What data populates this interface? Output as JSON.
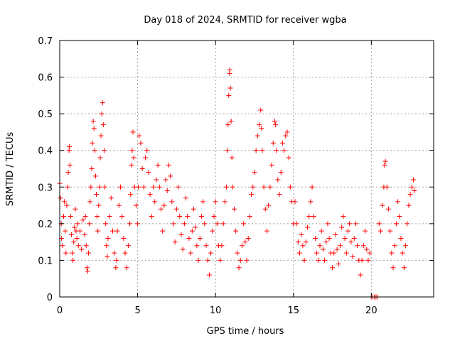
{
  "chart_data": {
    "type": "scatter",
    "title": "Day 018 of 2024, SRMTID for receiver wgba",
    "xlabel": "GPS time / hours",
    "ylabel": "SRMTID / TECUs",
    "xlim": [
      0,
      24
    ],
    "ylim": [
      0,
      0.7
    ],
    "xticks": [
      0,
      5,
      10,
      15,
      20
    ],
    "yticks": [
      0,
      0.1,
      0.2,
      0.3,
      0.4,
      0.5,
      0.6,
      0.7
    ],
    "ytick_labels": [
      "0",
      "0.1",
      "0.2",
      "0.3",
      "0.4",
      "0.5",
      "0.6",
      "0.7"
    ],
    "grid": true,
    "marker": "+",
    "colors": {
      "series": "#ff0000",
      "grid": "#a0a0a0",
      "axis": "#000000"
    },
    "series": [
      {
        "name": "SRMTID",
        "points": [
          [
            0.0,
            0.31
          ],
          [
            0.05,
            0.27
          ],
          [
            0.1,
            0.2
          ],
          [
            0.12,
            0.16
          ],
          [
            0.18,
            0.14
          ],
          [
            0.25,
            0.22
          ],
          [
            0.3,
            0.26
          ],
          [
            0.35,
            0.18
          ],
          [
            0.4,
            0.12
          ],
          [
            0.45,
            0.25
          ],
          [
            0.5,
            0.3
          ],
          [
            0.55,
            0.34
          ],
          [
            0.6,
            0.4
          ],
          [
            0.62,
            0.41
          ],
          [
            0.65,
            0.36
          ],
          [
            0.7,
            0.22
          ],
          [
            0.75,
            0.17
          ],
          [
            0.8,
            0.12
          ],
          [
            0.85,
            0.1
          ],
          [
            0.9,
            0.15
          ],
          [
            0.95,
            0.19
          ],
          [
            1.0,
            0.24
          ],
          [
            1.05,
            0.18
          ],
          [
            1.1,
            0.16
          ],
          [
            1.15,
            0.2
          ],
          [
            1.2,
            0.14
          ],
          [
            1.3,
            0.18
          ],
          [
            1.4,
            0.13
          ],
          [
            1.5,
            0.21
          ],
          [
            1.6,
            0.17
          ],
          [
            1.65,
            0.22
          ],
          [
            1.7,
            0.14
          ],
          [
            1.75,
            0.08
          ],
          [
            1.8,
            0.07
          ],
          [
            1.85,
            0.12
          ],
          [
            1.9,
            0.2
          ],
          [
            1.95,
            0.26
          ],
          [
            2.0,
            0.3
          ],
          [
            2.05,
            0.35
          ],
          [
            2.1,
            0.42
          ],
          [
            2.15,
            0.48
          ],
          [
            2.2,
            0.46
          ],
          [
            2.25,
            0.4
          ],
          [
            2.3,
            0.33
          ],
          [
            2.35,
            0.28
          ],
          [
            2.4,
            0.22
          ],
          [
            2.45,
            0.18
          ],
          [
            2.5,
            0.25
          ],
          [
            2.55,
            0.3
          ],
          [
            2.6,
            0.38
          ],
          [
            2.65,
            0.44
          ],
          [
            2.7,
            0.5
          ],
          [
            2.75,
            0.53
          ],
          [
            2.8,
            0.47
          ],
          [
            2.85,
            0.4
          ],
          [
            2.9,
            0.3
          ],
          [
            2.95,
            0.2
          ],
          [
            3.0,
            0.14
          ],
          [
            3.05,
            0.11
          ],
          [
            3.1,
            0.16
          ],
          [
            3.2,
            0.22
          ],
          [
            3.3,
            0.27
          ],
          [
            3.4,
            0.18
          ],
          [
            3.5,
            0.12
          ],
          [
            3.6,
            0.08
          ],
          [
            3.65,
            0.1
          ],
          [
            3.7,
            0.18
          ],
          [
            3.8,
            0.25
          ],
          [
            3.9,
            0.3
          ],
          [
            4.0,
            0.22
          ],
          [
            4.1,
            0.16
          ],
          [
            4.2,
            0.12
          ],
          [
            4.3,
            0.08
          ],
          [
            4.4,
            0.14
          ],
          [
            4.5,
            0.2
          ],
          [
            4.55,
            0.28
          ],
          [
            4.6,
            0.36
          ],
          [
            4.65,
            0.4
          ],
          [
            4.7,
            0.45
          ],
          [
            4.75,
            0.38
          ],
          [
            4.8,
            0.3
          ],
          [
            4.9,
            0.25
          ],
          [
            5.0,
            0.2
          ],
          [
            5.05,
            0.3
          ],
          [
            5.1,
            0.44
          ],
          [
            5.2,
            0.42
          ],
          [
            5.3,
            0.35
          ],
          [
            5.4,
            0.3
          ],
          [
            5.5,
            0.38
          ],
          [
            5.6,
            0.4
          ],
          [
            5.7,
            0.34
          ],
          [
            5.8,
            0.28
          ],
          [
            5.9,
            0.22
          ],
          [
            6.0,
            0.3
          ],
          [
            6.1,
            0.26
          ],
          [
            6.2,
            0.32
          ],
          [
            6.3,
            0.36
          ],
          [
            6.4,
            0.3
          ],
          [
            6.5,
            0.24
          ],
          [
            6.6,
            0.18
          ],
          [
            6.7,
            0.25
          ],
          [
            6.8,
            0.32
          ],
          [
            6.9,
            0.29
          ],
          [
            7.0,
            0.36
          ],
          [
            7.1,
            0.33
          ],
          [
            7.2,
            0.26
          ],
          [
            7.3,
            0.2
          ],
          [
            7.4,
            0.15
          ],
          [
            7.5,
            0.24
          ],
          [
            7.6,
            0.3
          ],
          [
            7.7,
            0.22
          ],
          [
            7.8,
            0.17
          ],
          [
            7.9,
            0.13
          ],
          [
            8.0,
            0.2
          ],
          [
            8.1,
            0.27
          ],
          [
            8.2,
            0.22
          ],
          [
            8.3,
            0.16
          ],
          [
            8.4,
            0.12
          ],
          [
            8.5,
            0.18
          ],
          [
            8.6,
            0.24
          ],
          [
            8.7,
            0.19
          ],
          [
            8.8,
            0.14
          ],
          [
            8.9,
            0.1
          ],
          [
            9.0,
            0.16
          ],
          [
            9.1,
            0.22
          ],
          [
            9.2,
            0.26
          ],
          [
            9.3,
            0.2
          ],
          [
            9.4,
            0.14
          ],
          [
            9.5,
            0.1
          ],
          [
            9.6,
            0.06
          ],
          [
            9.7,
            0.12
          ],
          [
            9.8,
            0.18
          ],
          [
            9.9,
            0.22
          ],
          [
            10.0,
            0.26
          ],
          [
            10.1,
            0.2
          ],
          [
            10.2,
            0.14
          ],
          [
            10.3,
            0.1
          ],
          [
            10.4,
            0.14
          ],
          [
            10.5,
            0.2
          ],
          [
            10.6,
            0.26
          ],
          [
            10.7,
            0.3
          ],
          [
            10.75,
            0.4
          ],
          [
            10.8,
            0.47
          ],
          [
            10.85,
            0.55
          ],
          [
            10.9,
            0.61
          ],
          [
            10.92,
            0.62
          ],
          [
            10.95,
            0.57
          ],
          [
            11.0,
            0.48
          ],
          [
            11.05,
            0.38
          ],
          [
            11.1,
            0.3
          ],
          [
            11.2,
            0.24
          ],
          [
            11.3,
            0.18
          ],
          [
            11.4,
            0.12
          ],
          [
            11.5,
            0.08
          ],
          [
            11.6,
            0.1
          ],
          [
            11.7,
            0.14
          ],
          [
            11.8,
            0.2
          ],
          [
            11.9,
            0.15
          ],
          [
            12.0,
            0.1
          ],
          [
            12.1,
            0.16
          ],
          [
            12.2,
            0.22
          ],
          [
            12.3,
            0.28
          ],
          [
            12.4,
            0.3
          ],
          [
            12.5,
            0.34
          ],
          [
            12.6,
            0.4
          ],
          [
            12.7,
            0.44
          ],
          [
            12.8,
            0.47
          ],
          [
            12.9,
            0.51
          ],
          [
            12.95,
            0.46
          ],
          [
            13.0,
            0.4
          ],
          [
            13.1,
            0.3
          ],
          [
            13.2,
            0.24
          ],
          [
            13.3,
            0.18
          ],
          [
            13.4,
            0.25
          ],
          [
            13.5,
            0.3
          ],
          [
            13.6,
            0.36
          ],
          [
            13.7,
            0.42
          ],
          [
            13.8,
            0.48
          ],
          [
            13.85,
            0.47
          ],
          [
            13.9,
            0.4
          ],
          [
            14.0,
            0.32
          ],
          [
            14.1,
            0.28
          ],
          [
            14.2,
            0.34
          ],
          [
            14.3,
            0.42
          ],
          [
            14.4,
            0.4
          ],
          [
            14.5,
            0.44
          ],
          [
            14.6,
            0.45
          ],
          [
            14.7,
            0.38
          ],
          [
            14.8,
            0.3
          ],
          [
            14.9,
            0.26
          ],
          [
            15.0,
            0.2
          ],
          [
            15.1,
            0.26
          ],
          [
            15.2,
            0.2
          ],
          [
            15.3,
            0.15
          ],
          [
            15.4,
            0.12
          ],
          [
            15.5,
            0.17
          ],
          [
            15.6,
            0.14
          ],
          [
            15.7,
            0.1
          ],
          [
            15.8,
            0.15
          ],
          [
            15.9,
            0.19
          ],
          [
            16.0,
            0.22
          ],
          [
            16.1,
            0.26
          ],
          [
            16.2,
            0.3
          ],
          [
            16.3,
            0.22
          ],
          [
            16.4,
            0.16
          ],
          [
            16.5,
            0.12
          ],
          [
            16.6,
            0.1
          ],
          [
            16.7,
            0.14
          ],
          [
            16.8,
            0.18
          ],
          [
            16.9,
            0.13
          ],
          [
            17.0,
            0.1
          ],
          [
            17.1,
            0.15
          ],
          [
            17.2,
            0.2
          ],
          [
            17.3,
            0.16
          ],
          [
            17.4,
            0.12
          ],
          [
            17.5,
            0.08
          ],
          [
            17.6,
            0.12
          ],
          [
            17.7,
            0.17
          ],
          [
            17.8,
            0.13
          ],
          [
            17.9,
            0.09
          ],
          [
            18.0,
            0.14
          ],
          [
            18.1,
            0.19
          ],
          [
            18.2,
            0.22
          ],
          [
            18.3,
            0.16
          ],
          [
            18.4,
            0.12
          ],
          [
            18.5,
            0.18
          ],
          [
            18.6,
            0.2
          ],
          [
            18.7,
            0.15
          ],
          [
            18.8,
            0.11
          ],
          [
            18.9,
            0.16
          ],
          [
            19.0,
            0.2
          ],
          [
            19.1,
            0.14
          ],
          [
            19.2,
            0.1
          ],
          [
            19.3,
            0.06
          ],
          [
            19.4,
            0.1
          ],
          [
            19.5,
            0.14
          ],
          [
            19.6,
            0.18
          ],
          [
            19.7,
            0.13
          ],
          [
            19.8,
            0.1
          ],
          [
            19.9,
            0.12
          ],
          [
            20.0,
            0.0
          ],
          [
            20.1,
            0.0
          ],
          [
            20.2,
            0.0
          ],
          [
            20.3,
            0.0
          ],
          [
            20.4,
            0.0
          ],
          [
            20.5,
            0.2
          ],
          [
            20.6,
            0.18
          ],
          [
            20.7,
            0.25
          ],
          [
            20.8,
            0.3
          ],
          [
            20.85,
            0.36
          ],
          [
            20.9,
            0.37
          ],
          [
            21.0,
            0.3
          ],
          [
            21.1,
            0.24
          ],
          [
            21.2,
            0.18
          ],
          [
            21.3,
            0.12
          ],
          [
            21.4,
            0.08
          ],
          [
            21.5,
            0.14
          ],
          [
            21.6,
            0.2
          ],
          [
            21.7,
            0.26
          ],
          [
            21.8,
            0.22
          ],
          [
            21.9,
            0.16
          ],
          [
            22.0,
            0.12
          ],
          [
            22.1,
            0.08
          ],
          [
            22.2,
            0.14
          ],
          [
            22.3,
            0.2
          ],
          [
            22.4,
            0.25
          ],
          [
            22.5,
            0.28
          ],
          [
            22.6,
            0.3
          ],
          [
            22.7,
            0.32
          ],
          [
            22.75,
            0.29
          ]
        ]
      }
    ]
  }
}
